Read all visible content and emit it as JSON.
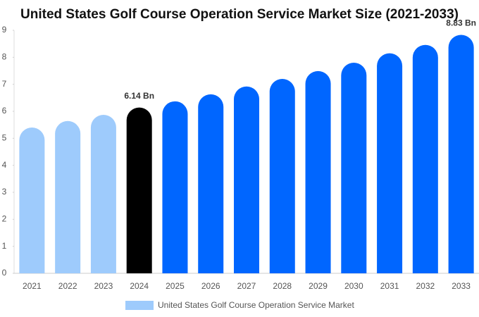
{
  "chart_data": {
    "type": "bar",
    "title": "United States Golf Course Operation Service Market Size (2021-2033)",
    "categories": [
      "2021",
      "2022",
      "2023",
      "2024",
      "2025",
      "2026",
      "2027",
      "2028",
      "2029",
      "2030",
      "2031",
      "2032",
      "2033"
    ],
    "series": [
      {
        "name": "United States Golf Course Operation Service Market",
        "color": "#9ecbfc",
        "colors": [
          "#9ecbfc",
          "#9ecbfc",
          "#9ecbfc",
          "#000000",
          "#0066ff",
          "#0066ff",
          "#0066ff",
          "#0066ff",
          "#0066ff",
          "#0066ff",
          "#0066ff",
          "#0066ff",
          "#0066ff"
        ],
        "values": [
          5.4,
          5.64,
          5.87,
          6.14,
          6.37,
          6.63,
          6.92,
          7.2,
          7.49,
          7.8,
          8.15,
          8.46,
          8.83
        ],
        "value_labels": [
          null,
          null,
          null,
          "6.14 Bn",
          null,
          null,
          null,
          null,
          null,
          null,
          null,
          null,
          "8.83 Bn"
        ]
      }
    ],
    "ylim": [
      0,
      9
    ],
    "yticks": [
      0,
      1,
      2,
      3,
      4,
      5,
      6,
      7,
      8,
      9
    ],
    "legend": "bottom"
  }
}
